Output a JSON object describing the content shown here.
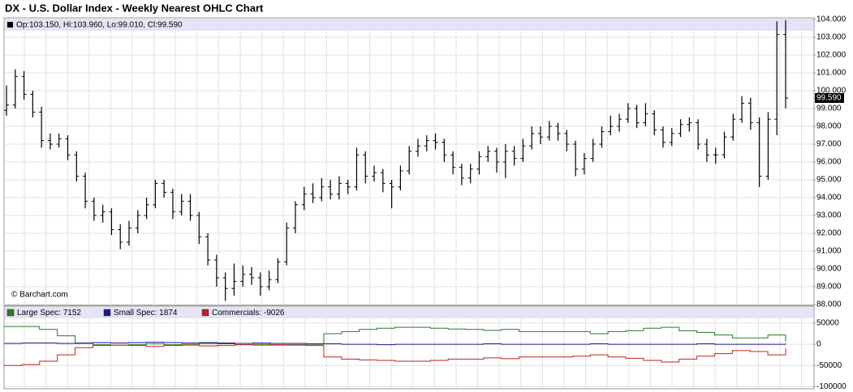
{
  "chart_data": [
    {
      "type": "ohlc",
      "title": "DX - U.S. Dollar Index - Weekly Nearest OHLC Chart",
      "readout": "Op:103.150, Hi:103.960, Lo:99.010, Cl:99.590",
      "credit": "© Barchart.com",
      "color": "#000000",
      "ylim": [
        88,
        104
      ],
      "yticks": [
        {
          "value": 88,
          "label": "88.000"
        },
        {
          "value": 89,
          "label": "89.000"
        },
        {
          "value": 90,
          "label": "90.000"
        },
        {
          "value": 91,
          "label": "91.000"
        },
        {
          "value": 92,
          "label": "92.000"
        },
        {
          "value": 93,
          "label": "93.000"
        },
        {
          "value": 94,
          "label": "94.000"
        },
        {
          "value": 95,
          "label": "95.000"
        },
        {
          "value": 96,
          "label": "96.000"
        },
        {
          "value": 97,
          "label": "97.000"
        },
        {
          "value": 98,
          "label": "98.000"
        },
        {
          "value": 99,
          "label": "99.000"
        },
        {
          "value": 100,
          "label": "100.000"
        },
        {
          "value": 101,
          "label": "101.000"
        },
        {
          "value": 102,
          "label": "102.000"
        },
        {
          "value": 103,
          "label": "103.000"
        },
        {
          "value": 104,
          "label": "104.000"
        }
      ],
      "last_price": {
        "value": 99.59,
        "label": "99.590"
      },
      "grid": true,
      "open": [
        98.9,
        99.2,
        100.8,
        99.8,
        98.8,
        97.2,
        97.0,
        97.3,
        96.4,
        95.2,
        93.8,
        93.0,
        93.2,
        92.2,
        91.5,
        92.3,
        93.0,
        93.6,
        94.8,
        94.3,
        93.2,
        93.8,
        93.0,
        91.8,
        90.5,
        89.5,
        88.9,
        89.3,
        89.7,
        89.5,
        89.0,
        89.4,
        90.4,
        92.3,
        93.6,
        94.2,
        94.0,
        94.6,
        94.2,
        94.8,
        94.6,
        96.4,
        95.2,
        95.4,
        94.8,
        94.6,
        95.5,
        96.6,
        96.9,
        97.2,
        97.1,
        96.4,
        95.7,
        95.1,
        95.6,
        96.3,
        96.6,
        96.0,
        96.6,
        96.2,
        96.9,
        97.6,
        97.4,
        98.0,
        97.6,
        97.0,
        95.6,
        96.2,
        97.0,
        97.7,
        98.0,
        98.4,
        99.0,
        98.2,
        98.7,
        97.8,
        97.1,
        97.6,
        98.1,
        98.2,
        97.0,
        96.4,
        96.4,
        97.4,
        98.4,
        99.3,
        98.2,
        95.2,
        98.4,
        103.15
      ],
      "high": [
        100.3,
        101.2,
        101.1,
        100.0,
        99.1,
        97.6,
        97.6,
        97.5,
        96.6,
        95.4,
        94.0,
        93.6,
        93.4,
        92.5,
        92.7,
        93.3,
        94.0,
        95.0,
        95.0,
        94.5,
        94.2,
        94.2,
        93.2,
        92.0,
        90.8,
        89.8,
        90.3,
        90.2,
        90.1,
        89.8,
        89.9,
        90.6,
        92.6,
        93.8,
        94.6,
        94.8,
        95.1,
        95.0,
        95.2,
        95.0,
        96.8,
        96.6,
        95.8,
        95.6,
        95.0,
        95.8,
        96.9,
        97.3,
        97.5,
        97.6,
        97.3,
        96.6,
        95.9,
        95.9,
        96.6,
        96.9,
        96.8,
        97.0,
        96.9,
        97.3,
        98.0,
        98.0,
        98.3,
        98.2,
        97.8,
        97.2,
        96.5,
        97.3,
        98.0,
        98.6,
        98.7,
        99.3,
        99.2,
        99.3,
        98.9,
        98.0,
        97.9,
        98.4,
        98.5,
        98.4,
        97.3,
        96.8,
        97.7,
        98.7,
        99.7,
        99.6,
        98.5,
        98.8,
        103.9,
        103.96
      ],
      "low": [
        98.6,
        99.0,
        99.5,
        98.5,
        96.8,
        96.7,
        96.8,
        96.1,
        94.9,
        93.4,
        92.7,
        92.6,
        91.9,
        91.1,
        91.3,
        92.0,
        92.8,
        93.4,
        94.0,
        92.8,
        93.0,
        92.7,
        91.4,
        90.2,
        89.0,
        88.2,
        88.5,
        89.0,
        89.1,
        88.5,
        88.8,
        89.2,
        90.2,
        92.0,
        93.3,
        93.7,
        93.8,
        93.9,
        93.9,
        94.2,
        94.4,
        94.8,
        94.9,
        94.3,
        93.4,
        94.4,
        95.3,
        96.3,
        96.6,
        96.7,
        96.0,
        95.3,
        94.7,
        94.8,
        95.3,
        96.0,
        95.4,
        95.1,
        95.8,
        96.0,
        96.7,
        97.0,
        97.2,
        97.2,
        96.6,
        95.2,
        95.3,
        96.0,
        96.8,
        97.5,
        97.7,
        98.2,
        97.9,
        98.0,
        97.5,
        96.8,
        96.9,
        97.4,
        97.7,
        96.7,
        96.0,
        95.9,
        96.2,
        97.2,
        98.2,
        97.8,
        94.6,
        95.0,
        97.5,
        99.01
      ],
      "close": [
        99.2,
        100.8,
        99.8,
        98.8,
        97.2,
        97.0,
        97.3,
        96.4,
        95.2,
        93.8,
        93.0,
        93.2,
        92.2,
        91.5,
        92.3,
        93.0,
        93.6,
        94.8,
        94.3,
        93.2,
        93.8,
        93.0,
        91.8,
        90.5,
        89.5,
        88.9,
        89.3,
        89.7,
        89.5,
        89.0,
        89.4,
        90.4,
        92.3,
        93.6,
        94.2,
        94.0,
        94.6,
        94.2,
        94.8,
        94.6,
        96.4,
        95.2,
        95.4,
        94.8,
        94.6,
        95.5,
        96.6,
        96.9,
        97.2,
        97.1,
        96.4,
        95.7,
        95.1,
        95.6,
        96.3,
        96.6,
        96.0,
        96.6,
        96.2,
        96.9,
        97.6,
        97.4,
        98.0,
        97.6,
        97.0,
        95.6,
        96.2,
        97.0,
        97.7,
        98.0,
        98.4,
        99.0,
        98.2,
        98.7,
        97.8,
        97.1,
        97.6,
        98.1,
        98.2,
        97.0,
        96.4,
        96.4,
        97.4,
        98.4,
        99.3,
        98.2,
        95.2,
        98.4,
        103.15,
        99.59
      ]
    },
    {
      "type": "step-line",
      "ylim": [
        -105000,
        90000
      ],
      "yticks": [
        50000,
        0,
        -50000,
        -100000
      ],
      "series": [
        {
          "name": "Large Spec: 7152",
          "color": "#2a7a2a",
          "values": [
            42000,
            42000,
            35000,
            20000,
            2000,
            -1000,
            -2000,
            -1000,
            1000,
            -1000,
            0,
            2000,
            1000,
            -1000,
            0,
            -2000,
            -1000,
            0,
            25000,
            30000,
            35000,
            38000,
            40000,
            40000,
            38000,
            36000,
            35000,
            33000,
            35000,
            30000,
            30000,
            30000,
            30000,
            25000,
            30000,
            32000,
            38000,
            40000,
            32000,
            28000,
            22000,
            15000,
            15000,
            22000,
            7152
          ]
        },
        {
          "name": "Small Spec: 1874",
          "color": "#1a1a8c",
          "values": [
            2000,
            3000,
            3000,
            2000,
            3000,
            4000,
            3000,
            4000,
            5000,
            4000,
            3000,
            4000,
            3000,
            2000,
            3000,
            2000,
            2000,
            1000,
            1000,
            0,
            0,
            -1000,
            0,
            0,
            0,
            0,
            0,
            1000,
            0,
            0,
            0,
            0,
            0,
            1000,
            0,
            0,
            0,
            0,
            0,
            1000,
            0,
            0,
            0,
            0,
            1874
          ]
        },
        {
          "name": "Commercials: -9026",
          "color": "#c02020",
          "values": [
            -50000,
            -48000,
            -40000,
            -25000,
            -8000,
            -3000,
            -2000,
            -3000,
            -5000,
            -3000,
            -2000,
            -4000,
            -3000,
            -1000,
            -2000,
            -1000,
            -2000,
            -3000,
            -30000,
            -35000,
            -37000,
            -38000,
            -40000,
            -40000,
            -38000,
            -35000,
            -35000,
            -32000,
            -34000,
            -30000,
            -30000,
            -30000,
            -28000,
            -25000,
            -30000,
            -33000,
            -38000,
            -42000,
            -35000,
            -28000,
            -22000,
            -15000,
            -17000,
            -25000,
            -9026
          ]
        }
      ]
    }
  ]
}
